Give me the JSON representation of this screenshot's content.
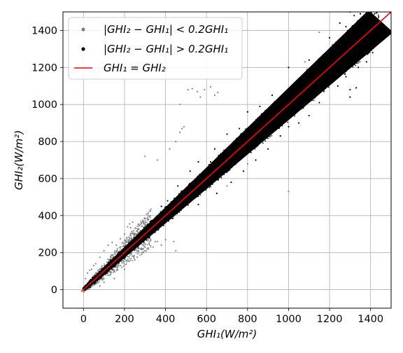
{
  "chart_data": {
    "type": "scatter",
    "title": "",
    "xlabel": "GHI₁(W/m²)",
    "ylabel": "GHI₂(W/m²)",
    "xlim": [
      -100,
      1500
    ],
    "ylim": [
      -100,
      1500
    ],
    "xticks": [
      0,
      200,
      400,
      600,
      800,
      1000,
      1200,
      1400
    ],
    "yticks": [
      0,
      200,
      400,
      600,
      800,
      1000,
      1200,
      1400
    ],
    "grid": true,
    "legend_position": "top-left",
    "colors": {
      "within": "#808080",
      "outside": "#000000",
      "line": "#ff0000"
    },
    "series": [
      {
        "name": "|GHI₂ − GHI₁| <  0.2GHI₁",
        "kind": "points",
        "color": "#808080",
        "points": [
          [
            10,
            60
          ],
          [
            20,
            90
          ],
          [
            30,
            105
          ],
          [
            40,
            110
          ],
          [
            50,
            130
          ],
          [
            60,
            140
          ],
          [
            80,
            175
          ],
          [
            100,
            210
          ],
          [
            120,
            240
          ],
          [
            140,
            255
          ],
          [
            160,
            240
          ],
          [
            180,
            275
          ],
          [
            200,
            300
          ],
          [
            215,
            340
          ],
          [
            225,
            355
          ],
          [
            230,
            335
          ],
          [
            240,
            365
          ],
          [
            250,
            300
          ],
          [
            255,
            285
          ],
          [
            270,
            310
          ],
          [
            300,
            340
          ],
          [
            310,
            270
          ],
          [
            320,
            250
          ],
          [
            340,
            230
          ],
          [
            360,
            260
          ],
          [
            380,
            240
          ],
          [
            400,
            270
          ],
          [
            420,
            400
          ],
          [
            440,
            260
          ],
          [
            450,
            210
          ],
          [
            80,
            20
          ],
          [
            100,
            40
          ],
          [
            150,
            60
          ],
          [
            200,
            110
          ],
          [
            250,
            160
          ],
          [
            300,
            230
          ],
          [
            350,
            260
          ],
          [
            240,
            270
          ],
          [
            470,
            1000
          ],
          [
            510,
            1080
          ],
          [
            530,
            1085
          ],
          [
            555,
            1070
          ],
          [
            570,
            1040
          ],
          [
            590,
            1080
          ],
          [
            620,
            1095
          ],
          [
            640,
            1050
          ],
          [
            655,
            1065
          ],
          [
            470,
            850
          ],
          [
            480,
            870
          ],
          [
            490,
            880
          ],
          [
            450,
            800
          ],
          [
            420,
            760
          ],
          [
            360,
            700
          ],
          [
            300,
            720
          ],
          [
            600,
            600
          ],
          [
            1000,
            530
          ],
          [
            1080,
            1230
          ],
          [
            1150,
            1390
          ],
          [
            700,
            560
          ],
          [
            800,
            680
          ]
        ]
      },
      {
        "name": "|GHI₂ − GHI₁| >  0.2GHI₁",
        "kind": "band",
        "color": "#000000",
        "band": {
          "x": [
            0,
            1450
          ],
          "half_width_low": 15,
          "half_width_high": 120
        },
        "outliers": [
          [
            1200,
            1360
          ],
          [
            1250,
            1440
          ],
          [
            1300,
            1500
          ],
          [
            1320,
            1480
          ],
          [
            1350,
            1490
          ],
          [
            1380,
            1380
          ],
          [
            1400,
            1420
          ],
          [
            1420,
            1490
          ],
          [
            1280,
            1420
          ],
          [
            1100,
            1240
          ],
          [
            1000,
            1200
          ],
          [
            920,
            1050
          ],
          [
            860,
            990
          ],
          [
            800,
            960
          ],
          [
            760,
            870
          ],
          [
            700,
            840
          ],
          [
            640,
            760
          ],
          [
            620,
            690
          ],
          [
            560,
            690
          ],
          [
            520,
            640
          ],
          [
            460,
            560
          ],
          [
            410,
            480
          ],
          [
            380,
            450
          ],
          [
            1050,
            900
          ],
          [
            1100,
            940
          ],
          [
            1150,
            1010
          ],
          [
            1240,
            1100
          ],
          [
            1280,
            1150
          ],
          [
            1300,
            1080
          ],
          [
            1340,
            1200
          ],
          [
            1380,
            1230
          ],
          [
            1410,
            1280
          ],
          [
            1000,
            880
          ],
          [
            960,
            830
          ],
          [
            900,
            760
          ],
          [
            840,
            700
          ],
          [
            780,
            640
          ],
          [
            720,
            580
          ],
          [
            650,
            520
          ],
          [
            560,
            460
          ],
          [
            1300,
            1040
          ],
          [
            1330,
            1090
          ]
        ]
      },
      {
        "name": "GHI₁ = GHI₂",
        "kind": "line",
        "color": "#ff0000",
        "x": [
          -10,
          1500
        ],
        "y": [
          -10,
          1500
        ]
      }
    ]
  }
}
